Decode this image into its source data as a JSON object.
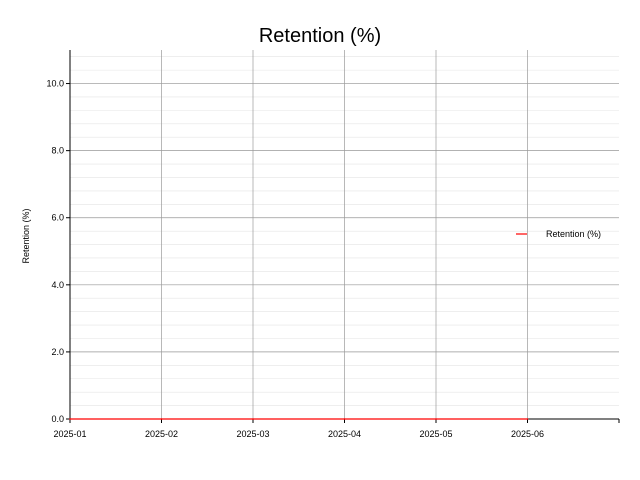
{
  "chart_data": {
    "type": "line",
    "title": "Retention (%)",
    "xlabel": "",
    "ylabel": "Retention (%)",
    "x": [
      "2025-01",
      "2025-02",
      "2025-03",
      "2025-04",
      "2025-05",
      "2025-06"
    ],
    "x_tick_labels": [
      "2025-01",
      "2025-02",
      "2025-03",
      "2025-04",
      "2025-05",
      "2025-06"
    ],
    "xlim": [
      "2025-01",
      "2025-07"
    ],
    "ylim": [
      0,
      11
    ],
    "y_ticks": [
      0,
      2,
      4,
      6,
      8,
      10
    ],
    "y_tick_labels": [
      "0.0",
      "2.0",
      "4.0",
      "6.0",
      "8.0",
      "10.0"
    ],
    "y_minor_step": 0.4,
    "grid": true,
    "legend": "right",
    "series": [
      {
        "name": "Retention (%)",
        "color": "#ff0000",
        "values": [
          0,
          0,
          0,
          0,
          0,
          0
        ]
      }
    ]
  }
}
